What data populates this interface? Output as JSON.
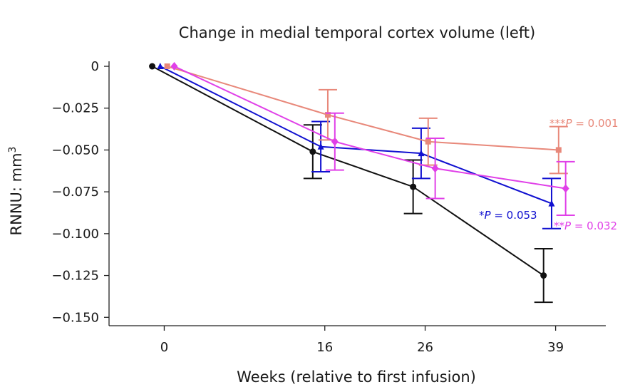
{
  "chart_data": {
    "type": "line",
    "title": "Change in medial temporal cortex volume (left)",
    "xlabel": "Weeks (relative to first infusion)",
    "ylabel_main": "RNNU: mm",
    "ylabel_sup": "3",
    "x_ticks": [
      "0",
      "16",
      "26",
      "39"
    ],
    "x_tick_values": [
      0,
      16,
      26,
      39
    ],
    "xlim": [
      -5.5,
      44
    ],
    "y_ticks": [
      "0",
      "−0.025",
      "−0.050",
      "−0.075",
      "−0.100",
      "−0.125",
      "−0.150"
    ],
    "y_tick_values": [
      0,
      -0.025,
      -0.05,
      -0.075,
      -0.1,
      -0.125,
      -0.15
    ],
    "ylim": [
      -0.155,
      0.003
    ],
    "grid": false,
    "series": [
      {
        "color": "#111111",
        "marker": "circle",
        "x": [
          -1.2,
          14.8,
          24.8,
          37.8
        ],
        "y": [
          0,
          -0.051,
          -0.072,
          -0.125
        ],
        "err": [
          0,
          0.016,
          0.016,
          0.016
        ]
      },
      {
        "color": "#1010d0",
        "marker": "triangle",
        "x": [
          -0.4,
          15.6,
          25.6,
          38.6
        ],
        "y": [
          0,
          -0.048,
          -0.052,
          -0.082
        ],
        "err": [
          0,
          0.015,
          0.015,
          0.015
        ]
      },
      {
        "color": "#e8887a",
        "marker": "square",
        "x": [
          0.3,
          16.3,
          26.3,
          39.3
        ],
        "y": [
          0,
          -0.029,
          -0.045,
          -0.05
        ],
        "err": [
          0,
          0.015,
          0.014,
          0.014
        ]
      },
      {
        "color": "#e040e8",
        "marker": "diamond",
        "x": [
          1.0,
          17.0,
          27.0,
          40.0
        ],
        "y": [
          0,
          -0.045,
          -0.061,
          -0.073
        ],
        "err": [
          0,
          0.017,
          0.018,
          0.016
        ]
      }
    ],
    "annotations": [
      {
        "stars": "***",
        "p": "P",
        "rest": " = 0.001",
        "color": "#e8887a"
      },
      {
        "stars": "*",
        "p": "P",
        "rest": " = 0.053",
        "color": "#1010d0"
      },
      {
        "stars": "**",
        "p": "P",
        "rest": " = 0.032",
        "color": "#e040e8"
      }
    ]
  }
}
